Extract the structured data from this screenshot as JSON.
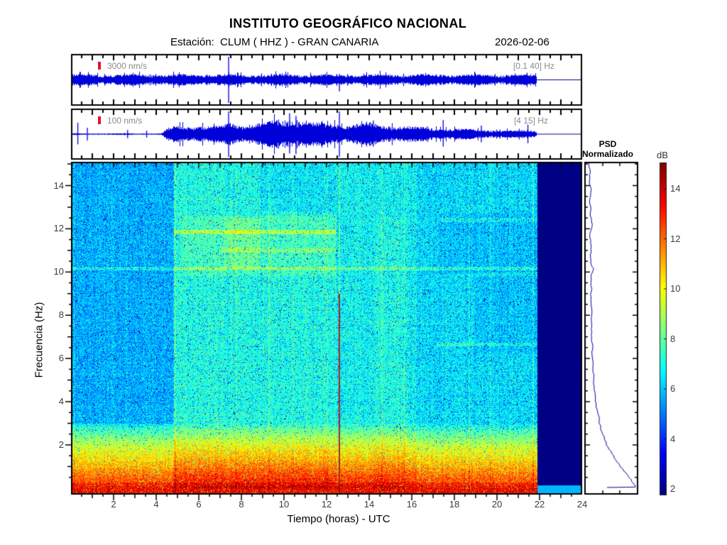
{
  "header": {
    "title": "INSTITUTO GEOGRÁFICO NACIONAL",
    "station_line": "Estación:  CLUM ( HHZ ) - GRAN CANARIA",
    "date": "2026-02-06"
  },
  "colors": {
    "trace_blue": "#0000d9",
    "trace_flat_blue": "#000090",
    "label_gray": "#8a8a8a",
    "marker_red": "#e8112d",
    "axis_black": "#000000",
    "nodata_navy": "#000084",
    "tick_text": "#3d3d3d"
  },
  "chart_data": [
    {
      "id": "trace_broadband",
      "type": "line",
      "scale_label": "3000 nm/s",
      "filter_label": "[0.1 40] Hz",
      "xlim": [
        0,
        24
      ],
      "data_end_hours": 21.9,
      "envelope": [
        [
          0,
          0.18
        ],
        [
          21.9,
          0.18
        ]
      ],
      "spikes": [
        [
          7.37,
          1.0,
          1.0
        ],
        [
          12.6,
          0.25,
          0.5
        ]
      ]
    },
    {
      "id": "trace_band_4_15",
      "type": "line",
      "scale_label": "100 nm/s",
      "filter_label": "[4 15] Hz",
      "xlim": [
        0,
        24
      ],
      "data_end_hours": 21.9,
      "envelope": [
        [
          0,
          0.025
        ],
        [
          4.2,
          0.025
        ],
        [
          4.5,
          0.2
        ],
        [
          5.0,
          0.3
        ],
        [
          5.5,
          0.26
        ],
        [
          6.0,
          0.32
        ],
        [
          6.5,
          0.24
        ],
        [
          7.1,
          0.3
        ],
        [
          7.45,
          0.42
        ],
        [
          7.9,
          0.36
        ],
        [
          8.4,
          0.32
        ],
        [
          9.0,
          0.4
        ],
        [
          9.6,
          0.45
        ],
        [
          10.2,
          0.55
        ],
        [
          10.6,
          0.5
        ],
        [
          11.0,
          0.42
        ],
        [
          11.5,
          0.38
        ],
        [
          12.0,
          0.36
        ],
        [
          12.6,
          0.38
        ],
        [
          13.2,
          0.33
        ],
        [
          13.8,
          0.4
        ],
        [
          14.3,
          0.36
        ],
        [
          14.9,
          0.32
        ],
        [
          15.5,
          0.28
        ],
        [
          16.2,
          0.24
        ],
        [
          17.0,
          0.21
        ],
        [
          17.8,
          0.19
        ],
        [
          18.6,
          0.17
        ],
        [
          19.4,
          0.15
        ],
        [
          20.2,
          0.13
        ],
        [
          20.9,
          0.12
        ],
        [
          21.5,
          0.14
        ],
        [
          21.9,
          0.12
        ]
      ],
      "spikes": [
        [
          0.25,
          0.5,
          0.45
        ],
        [
          0.7,
          0.28,
          0.28
        ],
        [
          2.6,
          0.18,
          0.18
        ],
        [
          3.5,
          0.15,
          0.15
        ],
        [
          7.37,
          1.0,
          1.0
        ],
        [
          10.25,
          0.92,
          0.85
        ],
        [
          10.55,
          0.8,
          0.88
        ],
        [
          12.6,
          1.0,
          1.0
        ],
        [
          14.2,
          0.6,
          0.55
        ],
        [
          17.5,
          0.62,
          0.55
        ],
        [
          19.3,
          0.38,
          0.36
        ],
        [
          21.5,
          0.42,
          0.4
        ]
      ]
    },
    {
      "id": "spectrogram",
      "type": "heatmap",
      "xlabel": "Tiempo (horas) - UTC",
      "ylabel": "Frecuencia  (Hz)",
      "xlim": [
        0,
        24
      ],
      "ylim": [
        0,
        15
      ],
      "xticks": [
        2,
        4,
        6,
        8,
        10,
        12,
        14,
        16,
        18,
        20,
        22,
        24
      ],
      "yticks": [
        2,
        4,
        6,
        8,
        10,
        12,
        14
      ],
      "clim": [
        1.75,
        15.05
      ],
      "colormap": "jet",
      "data_end_hours": 21.9,
      "base_db": 6.6,
      "low_freq_band": {
        "f_edge": 3.0,
        "boost": 6.5,
        "exponent": 0.8
      },
      "regions": [
        {
          "t": [
            0,
            4.85
          ],
          "f": [
            3.0,
            15.4
          ],
          "dv": -0.85
        },
        {
          "t": [
            0,
            4.85
          ],
          "f": [
            0,
            3.0
          ],
          "dv": -0.15
        },
        {
          "t": [
            4.85,
            12.45
          ],
          "f": [
            0,
            15.4
          ],
          "dv": 0.5
        },
        {
          "t": [
            5.2,
            12.45
          ],
          "f": [
            9.8,
            12.6
          ],
          "dv": 0.45
        },
        {
          "t": [
            7.2,
            8.9
          ],
          "f": [
            10.2,
            12.5
          ],
          "dv": 0.55
        },
        {
          "t": [
            8.9,
            12.45
          ],
          "f": [
            12.8,
            15.4
          ],
          "dv": -0.45
        },
        {
          "t": [
            12.45,
            16.2
          ],
          "f": [
            0,
            15.4
          ],
          "dv": 0.22
        },
        {
          "t": [
            14.2,
            15.7
          ],
          "f": [
            0,
            12.5
          ],
          "dv": 0.25
        },
        {
          "t": [
            16.2,
            21.9
          ],
          "f": [
            0,
            15.4
          ],
          "dv": -0.2
        },
        {
          "t": [
            17.3,
            21.9
          ],
          "f": [
            9.9,
            12.7
          ],
          "dv": -0.4
        },
        {
          "t": [
            19.0,
            21.9
          ],
          "f": [
            6.2,
            9.9
          ],
          "dv": -0.35
        }
      ],
      "h_lines": [
        {
          "f": 11.85,
          "t": [
            4.85,
            12.45
          ],
          "dv": 1.5
        },
        {
          "f": 11.0,
          "t": [
            7.0,
            12.45
          ],
          "dv": 0.8
        },
        {
          "f": 10.15,
          "t": [
            0,
            21.9
          ],
          "dv": 1.0
        },
        {
          "f": 12.4,
          "t": [
            17.3,
            21.9
          ],
          "dv": 0.7
        },
        {
          "f": 9.9,
          "t": [
            19.0,
            21.9
          ],
          "dv": 0.6
        },
        {
          "f": 6.65,
          "t": [
            17.2,
            21.9
          ],
          "dv": 0.8
        }
      ],
      "v_lines": [
        {
          "t": 0.15,
          "dv": 0.9
        },
        {
          "t": 4.9,
          "dv": 0.8
        },
        {
          "t": 6.45,
          "dv": 0.6
        },
        {
          "t": 7.05,
          "dv": 0.6
        },
        {
          "t": 7.75,
          "dv": 0.8
        },
        {
          "t": 8.35,
          "dv": 0.6
        },
        {
          "t": 9.3,
          "dv": 0.55
        },
        {
          "t": 10.45,
          "dv": 0.5
        },
        {
          "t": 11.15,
          "dv": 0.45
        },
        {
          "t": 12.05,
          "dv": 0.45
        },
        {
          "t": 13.35,
          "dv": 0.45
        },
        {
          "t": 14.6,
          "dv": 0.5
        },
        {
          "t": 15.65,
          "dv": 0.6
        },
        {
          "t": 16.45,
          "dv": 0.45
        },
        {
          "t": 17.45,
          "dv": 0.55
        },
        {
          "t": 18.7,
          "dv": 0.65
        },
        {
          "t": 19.7,
          "dv": 0.6
        },
        {
          "t": 20.6,
          "dv": 0.45
        },
        {
          "t": 21.7,
          "dv": 0.75
        }
      ],
      "red_line": {
        "t": 12.6,
        "f_top": 9.0,
        "dv_above": 1.2,
        "rgb": [
          178,
          34,
          34
        ]
      },
      "no_data": {
        "t_from": 21.9,
        "rgb": [
          0,
          0,
          132
        ]
      }
    },
    {
      "id": "psd",
      "type": "line",
      "title_lines": [
        "PSD",
        "Normalizado"
      ],
      "points": [
        [
          15.05,
          0.05
        ],
        [
          14.6,
          0.08
        ],
        [
          14.2,
          0.06
        ],
        [
          13.8,
          0.1
        ],
        [
          13.4,
          0.07
        ],
        [
          13.0,
          0.09
        ],
        [
          12.6,
          0.08
        ],
        [
          12.2,
          0.12
        ],
        [
          11.9,
          0.09
        ],
        [
          11.6,
          0.07
        ],
        [
          11.2,
          0.1
        ],
        [
          10.8,
          0.08
        ],
        [
          10.4,
          0.09
        ],
        [
          10.15,
          0.15
        ],
        [
          9.9,
          0.1
        ],
        [
          9.5,
          0.09
        ],
        [
          9.1,
          0.1
        ],
        [
          8.7,
          0.09
        ],
        [
          8.3,
          0.11
        ],
        [
          7.9,
          0.1
        ],
        [
          7.5,
          0.11
        ],
        [
          7.1,
          0.1
        ],
        [
          6.7,
          0.12
        ],
        [
          6.3,
          0.11
        ],
        [
          5.9,
          0.13
        ],
        [
          5.5,
          0.13
        ],
        [
          5.1,
          0.15
        ],
        [
          4.7,
          0.16
        ],
        [
          4.3,
          0.18
        ],
        [
          3.9,
          0.2
        ],
        [
          3.5,
          0.23
        ],
        [
          3.1,
          0.26
        ],
        [
          2.8,
          0.29
        ],
        [
          2.5,
          0.33
        ],
        [
          2.2,
          0.38
        ],
        [
          1.9,
          0.44
        ],
        [
          1.6,
          0.52
        ],
        [
          1.3,
          0.6
        ],
        [
          1.05,
          0.68
        ],
        [
          0.85,
          0.75
        ],
        [
          0.65,
          0.82
        ],
        [
          0.5,
          0.87
        ],
        [
          0.35,
          0.92
        ],
        [
          0.22,
          0.96
        ],
        [
          0.12,
          0.99
        ],
        [
          0.05,
          1.0
        ],
        [
          0.03,
          0.42
        ]
      ]
    },
    {
      "id": "colorbar",
      "type": "colorbar",
      "label": "dB",
      "ticks": [
        2,
        4,
        6,
        8,
        10,
        12,
        14
      ],
      "clim": [
        1.75,
        15.05
      ],
      "colormap": "jet"
    }
  ]
}
